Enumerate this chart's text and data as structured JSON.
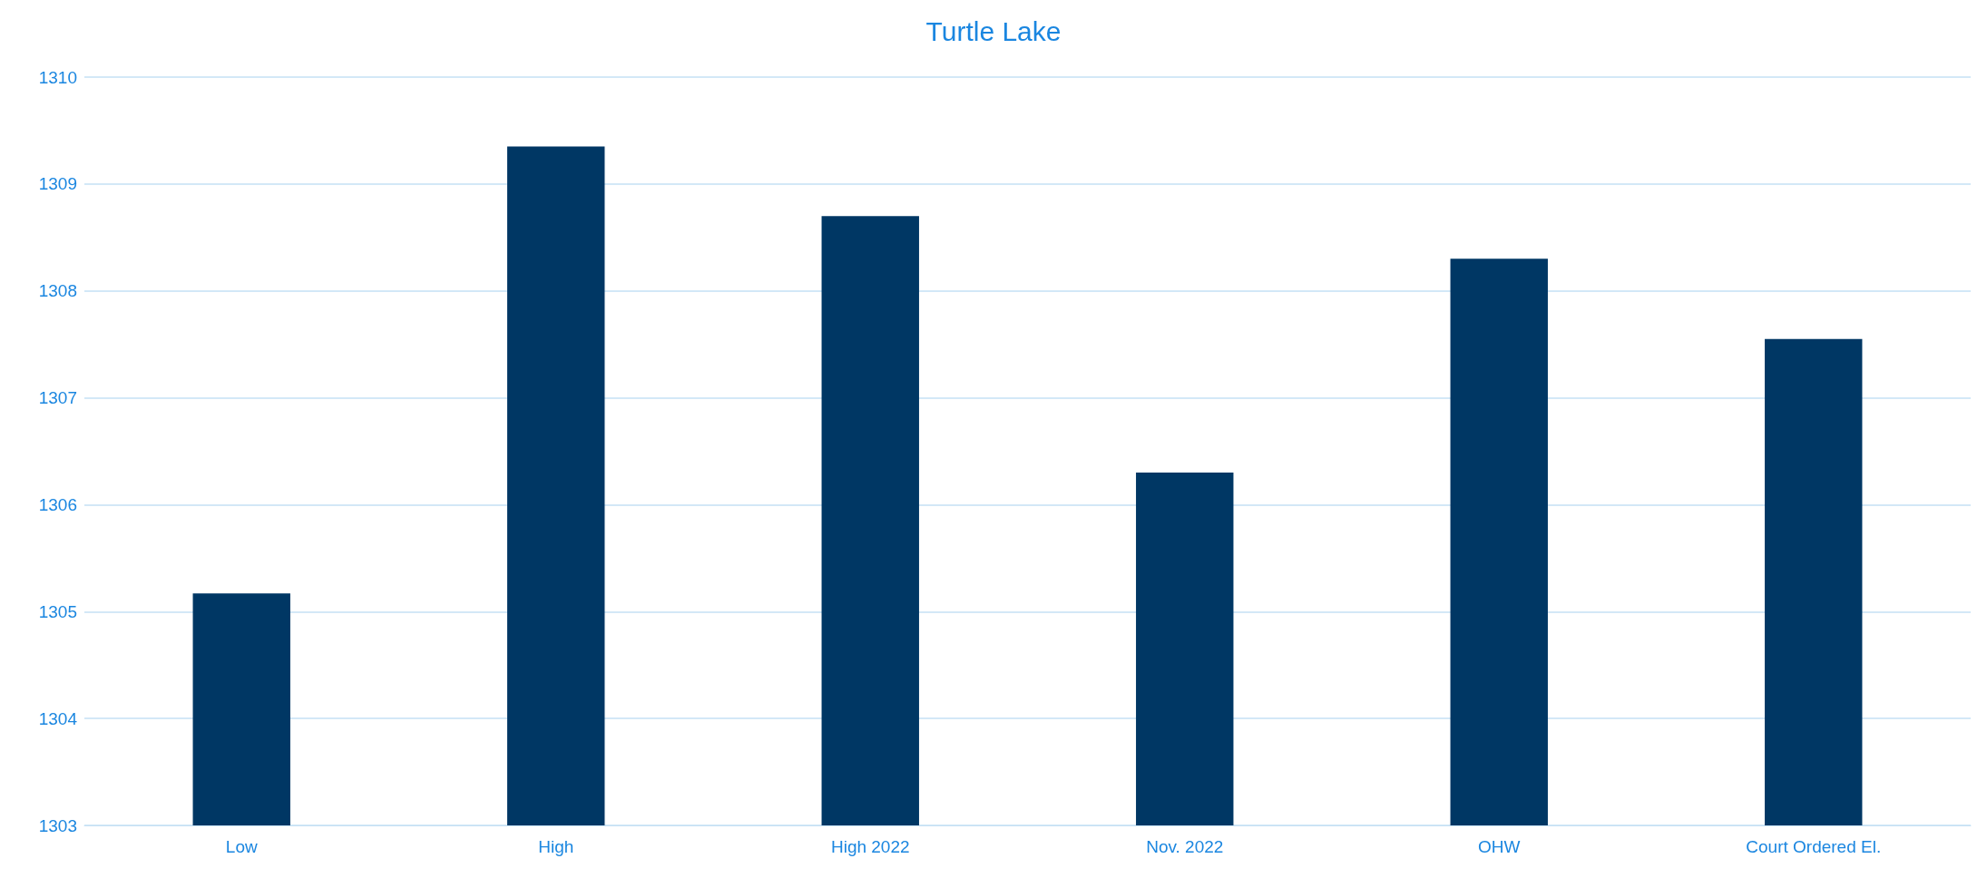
{
  "chart_data": {
    "type": "bar",
    "title": "Turtle Lake",
    "categories": [
      "Low",
      "High",
      "High 2022",
      "Nov. 2022",
      "OHW",
      "Court Ordered El."
    ],
    "values": [
      1305.17,
      1309.35,
      1308.7,
      1306.3,
      1308.3,
      1307.55
    ],
    "color": "#003764",
    "ylim": [
      1303,
      1310
    ],
    "yticks": [
      1303,
      1304,
      1305,
      1306,
      1307,
      1308,
      1309,
      1310
    ],
    "grid": "y"
  }
}
